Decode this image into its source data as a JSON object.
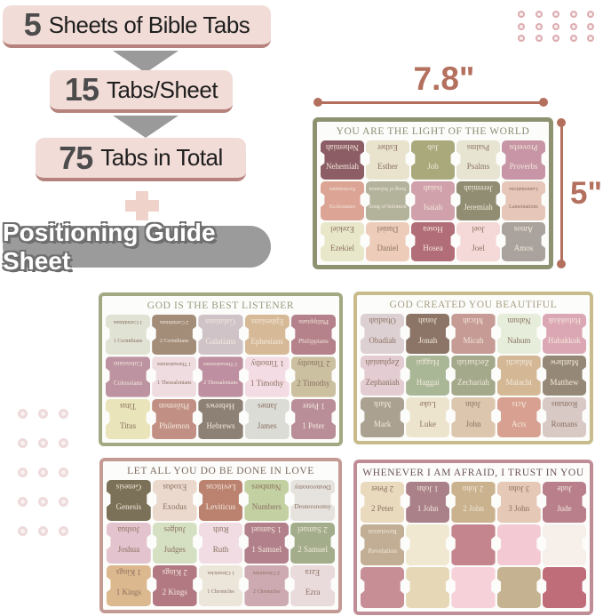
{
  "infographic": {
    "banners": [
      {
        "number": "5",
        "label": "Sheets of Bible Tabs"
      },
      {
        "number": "15",
        "label": "Tabs/Sheet"
      },
      {
        "number": "75",
        "label": "Tabs in Total"
      }
    ],
    "guide_banner": "Positioning Guide Sheet"
  },
  "dimensions": {
    "width_label": "7.8\"",
    "height_label": "5\""
  },
  "colors": {
    "accent_terracotta": "#b4705e",
    "banner_pink": "#f1dcd7",
    "banner_underline": "#b5827d",
    "arrow_gray": "#9a9a9a",
    "pill_gray": "#9b9b9b",
    "plus_pink": "#efd3cb"
  },
  "decorations": {
    "dot_grid_top_right": {
      "rows": 3,
      "cols": 5,
      "color": "#dcacb0"
    },
    "dot_grid_left": {
      "rows": 5,
      "cols": 3,
      "color": "#eedada"
    }
  },
  "sheets": [
    {
      "title": "YOU ARE THE LIGHT OF THE WORLD",
      "border": "#8f9270",
      "title_color": "#8c8c74",
      "tabs": [
        {
          "label": "Nehemiah",
          "bg": "#8d5d66",
          "text": "light"
        },
        {
          "label": "Esther",
          "bg": "#e9e2cd",
          "text": "dark"
        },
        {
          "label": "Job",
          "bg": "#a9a97c",
          "text": "light"
        },
        {
          "label": "Psalms",
          "bg": "#e7e5d2",
          "text": "dark"
        },
        {
          "label": "Proverbs",
          "bg": "#c795a5",
          "text": "light"
        },
        {
          "label": "Ecclesiastes",
          "bg": "#dba495",
          "text": "light"
        },
        {
          "label": "Song of Solomon",
          "bg": "#b3b39c",
          "text": "light"
        },
        {
          "label": "Isaiah",
          "bg": "#d0a0ab",
          "text": "light"
        },
        {
          "label": "Jeremiah",
          "bg": "#908d72",
          "text": "light"
        },
        {
          "label": "Lamentations",
          "bg": "#e6c6b8",
          "text": "dark"
        },
        {
          "label": "Ezekiel",
          "bg": "#e8e7ca",
          "text": "dark"
        },
        {
          "label": "Daniel",
          "bg": "#edccba",
          "text": "dark"
        },
        {
          "label": "Hosea",
          "bg": "#b26e78",
          "text": "light"
        },
        {
          "label": "Joel",
          "bg": "#f5d9d8",
          "text": "dark"
        },
        {
          "label": "Amos",
          "bg": "#aaa29c",
          "text": "light"
        }
      ]
    },
    {
      "title": "GOD IS THE BEST LISTENER",
      "border": "#a3a882",
      "title_color": "#99997f",
      "tabs": [
        {
          "label": "1 Corinthians",
          "bg": "#e0e2d4",
          "text": "dark"
        },
        {
          "label": "2 Corinthians",
          "bg": "#a38d79",
          "text": "light"
        },
        {
          "label": "Galatians",
          "bg": "#cfc3c8",
          "text": "light"
        },
        {
          "label": "Ephesians",
          "bg": "#d6b997",
          "text": "light"
        },
        {
          "label": "Philippians",
          "bg": "#b5818b",
          "text": "light"
        },
        {
          "label": "Colossians",
          "bg": "#bd93a2",
          "text": "light"
        },
        {
          "label": "1 Thessalonians",
          "bg": "#eedce0",
          "text": "dark"
        },
        {
          "label": "2 Thessalonians",
          "bg": "#bd8fa0",
          "text": "light"
        },
        {
          "label": "1 Timothy",
          "bg": "#f4dce4",
          "text": "dark"
        },
        {
          "label": "2 Timothy",
          "bg": "#cbc0a0",
          "text": "dark"
        },
        {
          "label": "Titus",
          "bg": "#e9e4b9",
          "text": "dark"
        },
        {
          "label": "Philemon",
          "bg": "#c18f83",
          "text": "light"
        },
        {
          "label": "Hebrews",
          "bg": "#8d8074",
          "text": "light"
        },
        {
          "label": "James",
          "bg": "#dcdcd6",
          "text": "dark"
        },
        {
          "label": "1 Peter",
          "bg": "#b98e99",
          "text": "light"
        }
      ]
    },
    {
      "title": "GOD CREATED YOU BEAUTIFUL",
      "border": "#c9bc8c",
      "title_color": "#a49e84",
      "tabs": [
        {
          "label": "Obadiah",
          "bg": "#ddd0d2",
          "text": "dark"
        },
        {
          "label": "Jonah",
          "bg": "#8c7567",
          "text": "light"
        },
        {
          "label": "Micah",
          "bg": "#c69b96",
          "text": "light"
        },
        {
          "label": "Nahum",
          "bg": "#e6eedb",
          "text": "dark"
        },
        {
          "label": "Habakkuk",
          "bg": "#dba7b4",
          "text": "light"
        },
        {
          "label": "Zephaniah",
          "bg": "#e3ccd2",
          "text": "dark"
        },
        {
          "label": "Haggai",
          "bg": "#a9b796",
          "text": "light"
        },
        {
          "label": "Zechariah",
          "bg": "#a3a98a",
          "text": "light"
        },
        {
          "label": "Malachi",
          "bg": "#d4b896",
          "text": "light"
        },
        {
          "label": "Matthew",
          "bg": "#958876",
          "text": "light"
        },
        {
          "label": "Mark",
          "bg": "#aaa190",
          "text": "light"
        },
        {
          "label": "Luke",
          "bg": "#ede4cd",
          "text": "dark"
        },
        {
          "label": "John",
          "bg": "#dcc7ae",
          "text": "dark"
        },
        {
          "label": "Acts",
          "bg": "#d8a090",
          "text": "light"
        },
        {
          "label": "Romans",
          "bg": "#d8c9c5",
          "text": "dark"
        }
      ]
    },
    {
      "title": "LET ALL YOU DO BE DONE IN LOVE",
      "border": "#c49a94",
      "title_color": "#7d6a5e",
      "tabs": [
        {
          "label": "Genesis",
          "bg": "#7b7058",
          "text": "light"
        },
        {
          "label": "Exodus",
          "bg": "#ecd9ce",
          "text": "dark"
        },
        {
          "label": "Leviticus",
          "bg": "#bb8270",
          "text": "light"
        },
        {
          "label": "Numbers",
          "bg": "#c3d0a2",
          "text": "dark"
        },
        {
          "label": "Deuteronomy",
          "bg": "#e6e3de",
          "text": "dark"
        },
        {
          "label": "Joshua",
          "bg": "#e3c3cd",
          "text": "dark"
        },
        {
          "label": "Judges",
          "bg": "#d5e0c2",
          "text": "dark"
        },
        {
          "label": "Ruth",
          "bg": "#f0dce2",
          "text": "dark"
        },
        {
          "label": "1 Samuel",
          "bg": "#b2808b",
          "text": "light"
        },
        {
          "label": "2 Samuel",
          "bg": "#a3ad8b",
          "text": "light"
        },
        {
          "label": "1 Kings",
          "bg": "#dcb88e",
          "text": "dark"
        },
        {
          "label": "2 Kings",
          "bg": "#b27983",
          "text": "light"
        },
        {
          "label": "1 Chronicles",
          "bg": "#ece5da",
          "text": "dark"
        },
        {
          "label": "2 Chronicles",
          "bg": "#cdaab1",
          "text": "dark"
        },
        {
          "label": "Ezra",
          "bg": "#e9dadc",
          "text": "dark"
        }
      ]
    },
    {
      "title": "WHENEVER I AM AFRAID, I TRUST IN YOU",
      "border": "#bf8d95",
      "title_color": "#6d5360",
      "tabs": [
        {
          "label": "2 Peter",
          "bg": "#e9d9bd",
          "text": "dark"
        },
        {
          "label": "1 John",
          "bg": "#aa8089",
          "text": "light"
        },
        {
          "label": "2 John",
          "bg": "#cab28e",
          "text": "light"
        },
        {
          "label": "3 John",
          "bg": "#e5c8b6",
          "text": "dark"
        },
        {
          "label": "Jude",
          "bg": "#b9808c",
          "text": "light"
        },
        {
          "label": "Revelation",
          "bg": "#c2ae94",
          "text": "light"
        },
        {
          "label": "",
          "bg": "#f0e8d1",
          "text": "dark"
        },
        {
          "label": "",
          "bg": "#c5858e",
          "text": "light"
        },
        {
          "label": "",
          "bg": "#f3cad3",
          "text": "dark"
        },
        {
          "label": "",
          "bg": "#f7efe9",
          "text": "dark"
        },
        {
          "label": "",
          "bg": "#c78e96",
          "text": "light"
        },
        {
          "label": "",
          "bg": "#e6d8b6",
          "text": "dark"
        },
        {
          "label": "",
          "bg": "#f6d1d9",
          "text": "dark"
        },
        {
          "label": "",
          "bg": "#c4b290",
          "text": "light"
        },
        {
          "label": "",
          "bg": "#bf6d79",
          "text": "light"
        }
      ]
    }
  ]
}
